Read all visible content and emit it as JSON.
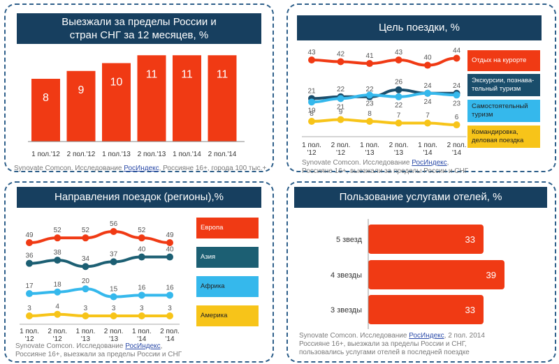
{
  "colors": {
    "red": "#f03a14",
    "navy": "#173f5f",
    "teal": "#1c5f73",
    "sky": "#35b8ec",
    "gold": "#f7c419",
    "navy_line": "#1a4d6b"
  },
  "chart_data": [
    {
      "id": "travel_abroad",
      "type": "bar",
      "title": "Выезжали за пределы России и стран СНГ за 12 месяцев, %",
      "title_lines": [
        "Выезжали за пределы России и",
        "стран СНГ за 12 месяцев, %"
      ],
      "categories": [
        "1 пол.'12",
        "2 пол.'12",
        "1 пол.'13",
        "2 пол.'13",
        "1 пол.'14",
        "2 пол.'14"
      ],
      "values": [
        8,
        9,
        10,
        11,
        11,
        11
      ],
      "ylim": [
        0,
        12
      ],
      "source": {
        "prefix": "Synovate Comcon. Исследование ",
        "link": "РосИндекс",
        "suffix": ", Россияне 16+, города 100 тыс.+"
      }
    },
    {
      "id": "trip_purpose",
      "type": "line",
      "title": "Цель поездки, %",
      "categories": [
        [
          "1 пол.",
          "'12"
        ],
        [
          "2 пол.",
          "'12"
        ],
        [
          "1 пол.",
          "'13"
        ],
        [
          "2 пол.",
          "'13"
        ],
        [
          "1 пол.",
          "'14"
        ],
        [
          "2 пол.",
          "'14"
        ]
      ],
      "series": [
        {
          "name": "Отдых на курорте",
          "values": [
            43,
            42,
            41,
            43,
            40,
            44
          ],
          "color": "#f03a14"
        },
        {
          "name": "Экскурсии, познавательный туризм",
          "legend_lines": [
            "Экскурсии, познава-",
            "тельный туризм"
          ],
          "values": [
            21,
            22,
            22,
            26,
            24,
            24
          ],
          "color": "#1a4d6b"
        },
        {
          "name": "Самостоятельный туризм",
          "legend_lines": [
            "Самостоятельный",
            "туризм"
          ],
          "values": [
            19,
            21,
            23,
            22,
            24,
            23
          ],
          "color": "#35b8ec"
        },
        {
          "name": "Командировка, деловая поездка",
          "legend_lines": [
            "Командировка,",
            "деловая поездка"
          ],
          "values": [
            8,
            9,
            8,
            7,
            7,
            6
          ],
          "color": "#f7c419"
        }
      ],
      "ylim": [
        0,
        50
      ],
      "source": {
        "prefix": "Synovate Comcon. Исследование ",
        "link": "РосИндекс",
        "suffix": ",",
        "line2": "Россияне 16+, выезжали за пределы России и СНГ"
      }
    },
    {
      "id": "destinations",
      "type": "line",
      "title": "Направления поездок (регионы),%",
      "categories": [
        [
          "1 пол.",
          "'12"
        ],
        [
          "2 пол.",
          "'12"
        ],
        [
          "1 пол.",
          "'13"
        ],
        [
          "2 пол.",
          "'13"
        ],
        [
          "1 пол.",
          "'14"
        ],
        [
          "2 пол.",
          "'14"
        ]
      ],
      "series": [
        {
          "name": "Европа",
          "values": [
            49,
            52,
            52,
            56,
            52,
            49
          ],
          "color": "#f03a14"
        },
        {
          "name": "Азия",
          "values": [
            36,
            38,
            34,
            37,
            40,
            40
          ],
          "color": "#1c5f73"
        },
        {
          "name": "Африка",
          "values": [
            17,
            18,
            20,
            15,
            16,
            16
          ],
          "color": "#35b8ec"
        },
        {
          "name": "Америка",
          "values": [
            3,
            4,
            3,
            3,
            3,
            3
          ],
          "color": "#f7c419"
        }
      ],
      "ylim": [
        0,
        60
      ],
      "source": {
        "prefix": "Synovate Comcon. Исследование ",
        "link": "РосИндекс",
        "suffix": ",",
        "line2": "Россияне 16+, выезжали за пределы России и СНГ"
      }
    },
    {
      "id": "hotel_usage",
      "type": "bar",
      "orientation": "horizontal",
      "title": "Пользование услугами отелей, %",
      "categories": [
        "5 звезд",
        "4 звезды",
        "3 звезды"
      ],
      "values": [
        33,
        39,
        33
      ],
      "xlim": [
        0,
        40
      ],
      "source": {
        "prefix": "Synovate Comcon. Исследование ",
        "link": "РосИндекс",
        "suffix": ", 2 пол. 2014",
        "line2": "Россияне 16+, выезжали за пределы России и СНГ,",
        "line3": "пользовались услугами отелей в последней поездке"
      }
    }
  ]
}
